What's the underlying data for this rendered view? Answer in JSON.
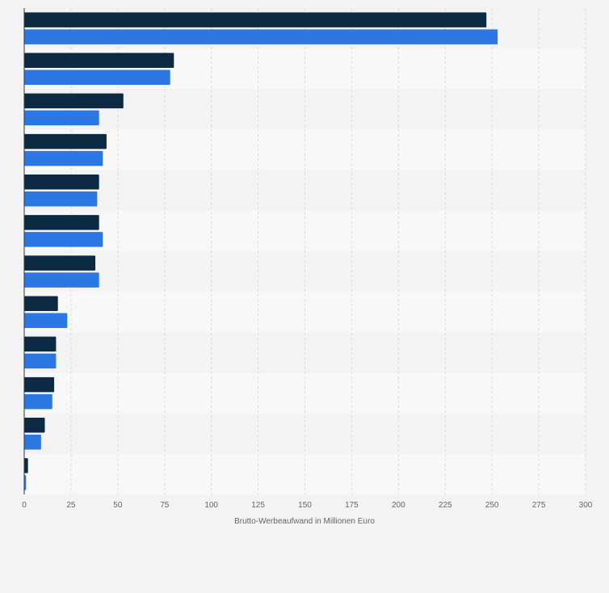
{
  "chart_data": {
    "type": "bar",
    "orientation": "horizontal",
    "categories": [
      "",
      "",
      "",
      "",
      "",
      "",
      "",
      "",
      "",
      "",
      "",
      ""
    ],
    "series": [
      {
        "color": "#0d2a45",
        "values": [
          247,
          80,
          53,
          44,
          40,
          40,
          38,
          18,
          17,
          16,
          11,
          2
        ]
      },
      {
        "color": "#2b78e4",
        "values": [
          253,
          78,
          40,
          42,
          39,
          42,
          40,
          23,
          17,
          15,
          9,
          1
        ]
      }
    ],
    "xlabel": "Brutto-Werbeaufwand in Millionen Euro",
    "xlim": [
      0,
      300
    ],
    "xticks": [
      "0",
      "25",
      "50",
      "75",
      "100",
      "125",
      "150",
      "175",
      "200",
      "225",
      "250",
      "275",
      "300"
    ],
    "grid": true,
    "colors": {
      "page_background": "#f3f3f3",
      "band_light": "#f8f8f8",
      "band_dark": "#f3f3f3",
      "grid": "#d9d9d9",
      "axis": "#333333",
      "tick_text": "#666666"
    }
  }
}
